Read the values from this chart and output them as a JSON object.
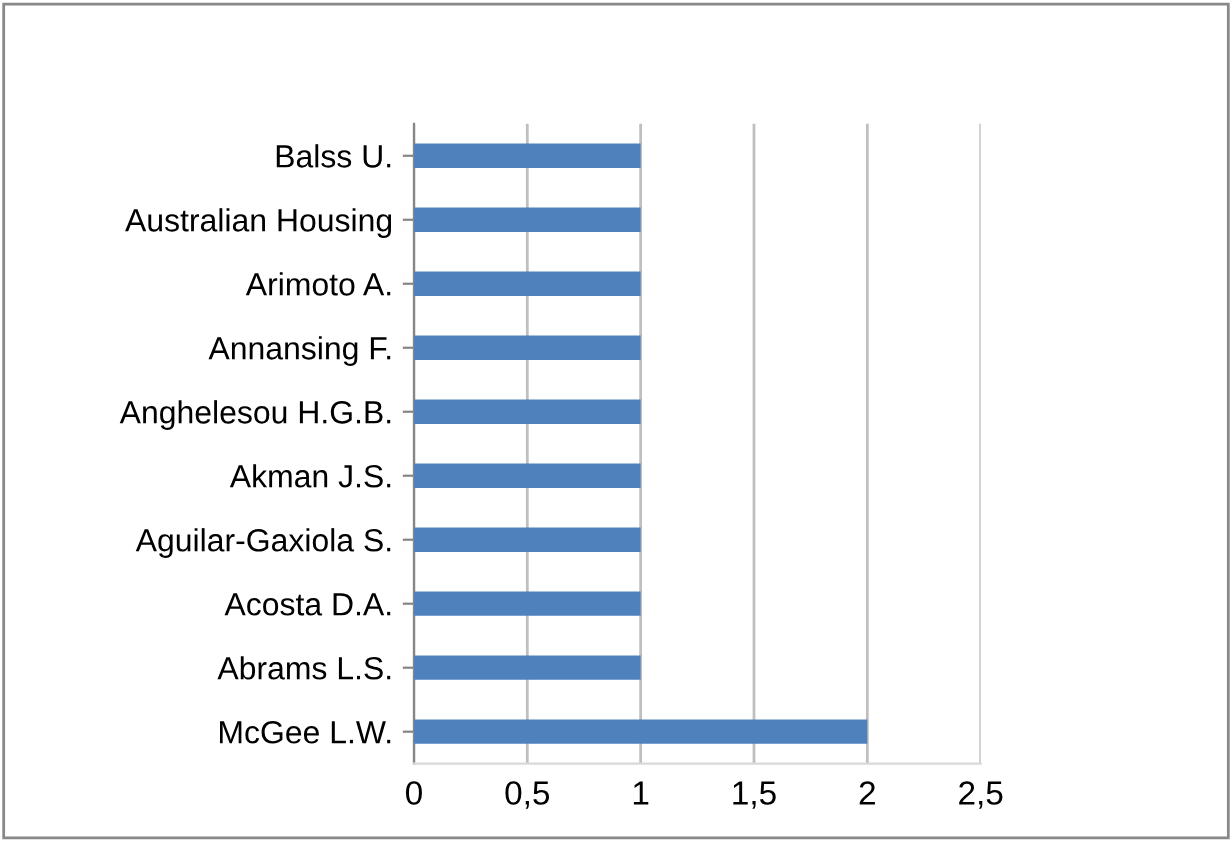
{
  "chart_data": {
    "type": "bar",
    "orientation": "horizontal",
    "categories": [
      "Balss U.",
      "Australian Housing",
      "Arimoto A.",
      "Annansing F.",
      "Anghelesou H.G.B.",
      "Akman J.S.",
      "Aguilar-Gaxiola S.",
      "Acosta D.A.",
      "Abrams L.S.",
      "McGee L.W."
    ],
    "values": [
      1,
      1,
      1,
      1,
      1,
      1,
      1,
      1,
      1,
      2
    ],
    "color": "#4f81bd",
    "xlim": [
      0,
      2.5
    ],
    "xticks": [
      0,
      {
        "value": 0.5,
        "label": "0,5"
      },
      1,
      {
        "value": 1.5,
        "label": "1,5"
      },
      2,
      {
        "value": 2.5,
        "label": "2,5"
      }
    ],
    "grid": "x"
  }
}
